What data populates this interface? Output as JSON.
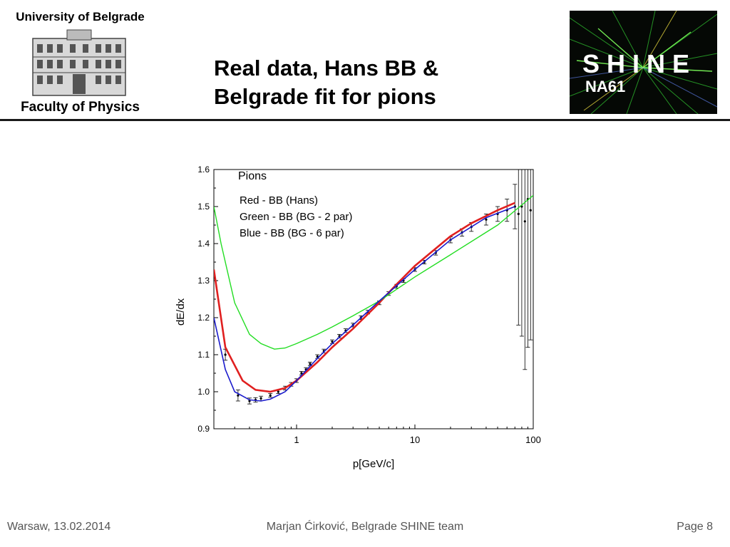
{
  "header": {
    "university_top": "University of Belgrade",
    "university_bottom": "Faculty of Physics",
    "title_line1": "Real data, Hans BB &",
    "title_line2": "Belgrade fit for pions",
    "shine_logo_text": "SHINE",
    "shine_logo_subtext": "NA61"
  },
  "footer": {
    "left": "Warsaw, 13.02.2014",
    "center": "Marjan Ćirković, Belgrade SHINE team",
    "right": "Page 8"
  },
  "chart_data": {
    "type": "line",
    "title": "Pions",
    "xlabel": "p[GeV/c]",
    "ylabel": "dE/dx",
    "x_scale": "log",
    "xlim": [
      0.2,
      100
    ],
    "ylim": [
      0.9,
      1.6
    ],
    "x_ticks": [
      1,
      10,
      100
    ],
    "x_tick_labels": [
      "1",
      "10",
      "100"
    ],
    "y_ticks": [
      0.9,
      1.0,
      1.1,
      1.2,
      1.3,
      1.4,
      1.5,
      1.6
    ],
    "y_tick_labels": [
      "0.9",
      "1.0",
      "1.1",
      "1.2",
      "1.3",
      "1.4",
      "1.5",
      "1.6"
    ],
    "grid": false,
    "legend": [
      "Red - BB (Hans)",
      "Green - BB (BG - 2 par)",
      "Blue - BB (BG - 6 par)"
    ],
    "colors": {
      "red": "#e02020",
      "green": "#22dd22",
      "blue": "#1a1acc",
      "data": "#000000"
    },
    "series": [
      {
        "color": "red",
        "x": [
          0.2,
          0.25,
          0.35,
          0.45,
          0.6,
          0.8,
          1.0,
          1.5,
          2,
          3,
          5,
          7,
          10,
          20,
          30,
          50,
          70
        ],
        "y": [
          1.33,
          1.12,
          1.03,
          1.005,
          1.0,
          1.01,
          1.03,
          1.08,
          1.12,
          1.17,
          1.24,
          1.29,
          1.34,
          1.42,
          1.455,
          1.49,
          1.51
        ]
      },
      {
        "color": "green",
        "x": [
          0.2,
          0.23,
          0.3,
          0.4,
          0.5,
          0.65,
          0.8,
          1.0,
          1.5,
          2,
          3,
          5,
          10,
          20,
          50,
          100
        ],
        "y": [
          1.5,
          1.4,
          1.24,
          1.155,
          1.13,
          1.115,
          1.118,
          1.13,
          1.155,
          1.175,
          1.205,
          1.245,
          1.31,
          1.37,
          1.45,
          1.53
        ]
      },
      {
        "color": "blue",
        "x": [
          0.2,
          0.25,
          0.3,
          0.4,
          0.5,
          0.6,
          0.8,
          1.0,
          1.5,
          2,
          3,
          5,
          10,
          20,
          40,
          70
        ],
        "y": [
          1.2,
          1.06,
          1.0,
          0.978,
          0.975,
          0.98,
          1.0,
          1.03,
          1.09,
          1.13,
          1.18,
          1.245,
          1.33,
          1.41,
          1.47,
          1.5
        ]
      }
    ],
    "data_points": {
      "x": [
        0.25,
        0.32,
        0.4,
        0.45,
        0.5,
        0.6,
        0.7,
        0.8,
        0.9,
        1.0,
        1.1,
        1.2,
        1.3,
        1.5,
        1.7,
        2.0,
        2.3,
        2.6,
        3.0,
        3.5,
        4.0,
        5.0,
        6.0,
        7.0,
        8.0,
        10,
        12,
        15,
        20,
        25,
        30,
        40,
        50,
        60,
        70,
        75,
        80,
        85,
        90,
        95
      ],
      "y": [
        1.1,
        0.99,
        0.975,
        0.978,
        0.982,
        0.99,
        1.0,
        1.01,
        1.02,
        1.03,
        1.05,
        1.06,
        1.075,
        1.095,
        1.11,
        1.135,
        1.15,
        1.165,
        1.18,
        1.2,
        1.215,
        1.24,
        1.265,
        1.285,
        1.3,
        1.33,
        1.35,
        1.375,
        1.41,
        1.43,
        1.445,
        1.465,
        1.48,
        1.49,
        1.5,
        1.48,
        1.5,
        1.46,
        1.52,
        1.49
      ],
      "err": [
        0.015,
        0.015,
        0.008,
        0.006,
        0.006,
        0.005,
        0.005,
        0.005,
        0.005,
        0.005,
        0.005,
        0.005,
        0.005,
        0.005,
        0.005,
        0.005,
        0.005,
        0.005,
        0.005,
        0.005,
        0.005,
        0.005,
        0.005,
        0.005,
        0.005,
        0.005,
        0.005,
        0.006,
        0.008,
        0.01,
        0.012,
        0.015,
        0.02,
        0.03,
        0.06,
        0.3,
        0.35,
        0.4,
        0.4,
        0.35
      ]
    }
  }
}
